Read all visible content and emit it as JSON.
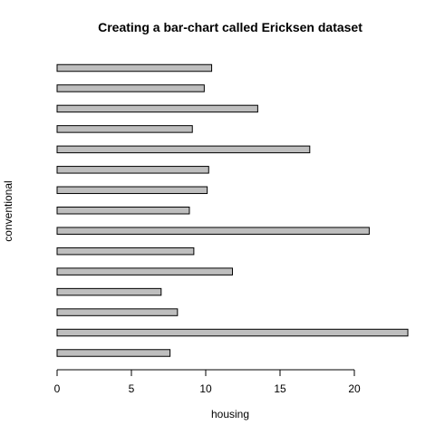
{
  "chart_data": {
    "type": "bar",
    "orientation": "horizontal",
    "title": "Creating a bar-chart called Ericksen dataset",
    "xlabel": "housing",
    "ylabel": "conventional",
    "xlim": [
      0,
      24
    ],
    "xticks": [
      0,
      5,
      10,
      15,
      20
    ],
    "values": [
      7.6,
      23.6,
      8.1,
      7.0,
      11.8,
      9.2,
      21.0,
      8.9,
      10.1,
      10.2,
      17.0,
      9.1,
      13.5,
      9.9,
      10.4
    ],
    "bar_color": "#bebebe",
    "grid": false
  }
}
